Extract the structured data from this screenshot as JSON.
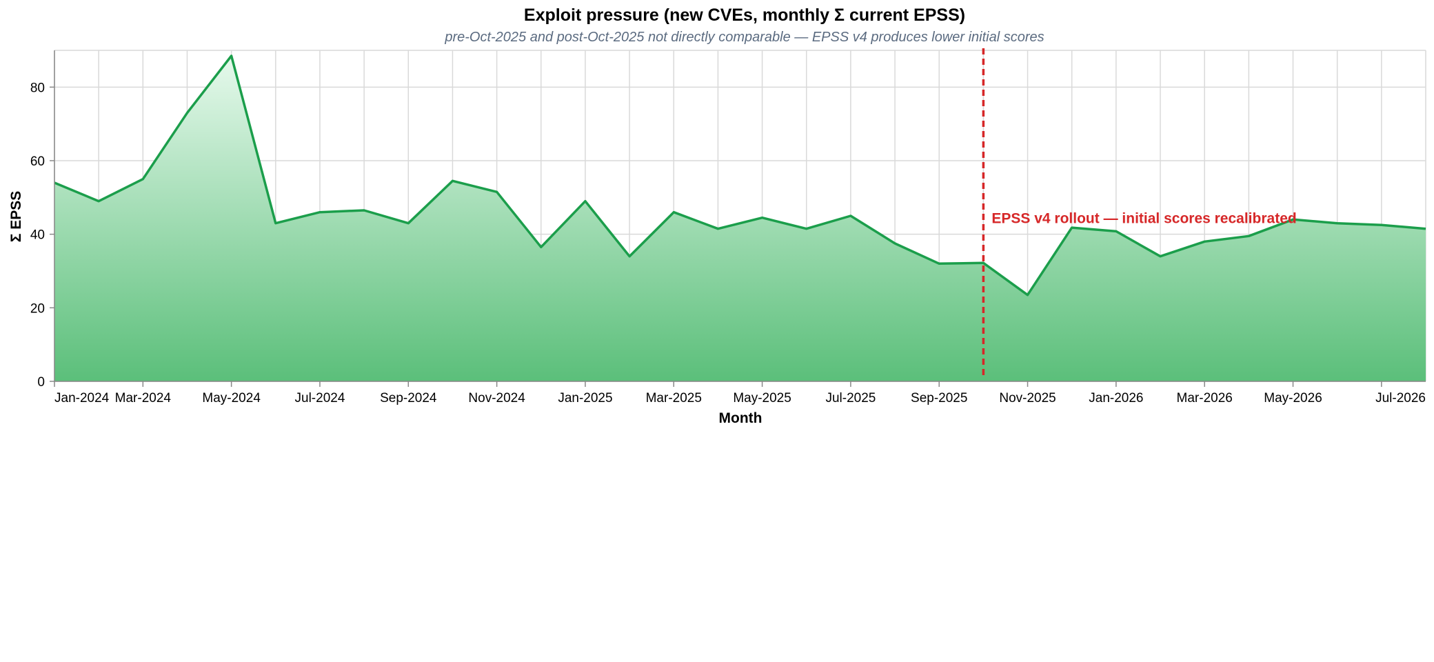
{
  "chart_data": {
    "type": "area",
    "title": "Exploit pressure (new CVEs, monthly Σ current EPSS)",
    "subtitle": "pre-Oct-2025 and post-Oct-2025 not directly comparable — EPSS v4 produces lower initial scores",
    "xlabel": "Month",
    "ylabel": "Σ EPSS",
    "ylim": [
      0,
      90
    ],
    "yticks": [
      0,
      20,
      40,
      60,
      80
    ],
    "grid": true,
    "x": [
      "2024-01",
      "2024-02",
      "2024-03",
      "2024-04",
      "2024-05",
      "2024-06",
      "2024-07",
      "2024-08",
      "2024-09",
      "2024-10",
      "2024-11",
      "2024-12",
      "2025-01",
      "2025-02",
      "2025-03",
      "2025-04",
      "2025-05",
      "2025-06",
      "2025-07",
      "2025-08",
      "2025-09",
      "2025-10",
      "2025-11",
      "2025-12",
      "2026-01",
      "2026-02",
      "2026-03",
      "2026-04",
      "2026-05",
      "2026-06",
      "2026-07",
      "2026-08"
    ],
    "x_tick_labels": [
      "Jan-2024",
      "Mar-2024",
      "May-2024",
      "Jul-2024",
      "Sep-2024",
      "Nov-2024",
      "Jan-2025",
      "Mar-2025",
      "May-2025",
      "Jul-2025",
      "Sep-2025",
      "Nov-2025",
      "Jan-2026",
      "Mar-2026",
      "May-2026",
      "Jul-2026"
    ],
    "x_tick_months": [
      "2024-01",
      "2024-03",
      "2024-05",
      "2024-07",
      "2024-09",
      "2024-11",
      "2025-01",
      "2025-03",
      "2025-05",
      "2025-07",
      "2025-09",
      "2025-11",
      "2026-01",
      "2026-03",
      "2026-05",
      "2026-07"
    ],
    "values": [
      54,
      49,
      55,
      73,
      88.5,
      43,
      46,
      46.5,
      43,
      54.5,
      51.5,
      36.5,
      49,
      34,
      46,
      41.5,
      44.5,
      41.5,
      45,
      37.5,
      32,
      32.2,
      23.5,
      41.8,
      40.8,
      34,
      38,
      39.5,
      44,
      43,
      42.5,
      41.5
    ],
    "colors": {
      "line": "#1b9e4b",
      "area_top": "#e6f9ec",
      "area_bottom": "#5bbf7a",
      "annotation": "#d62728",
      "grid": "#d9d9d9",
      "axis": "#888888"
    },
    "annotation": {
      "x": "2025-10",
      "label": "EPSS v4 rollout — initial scores recalibrated"
    }
  }
}
